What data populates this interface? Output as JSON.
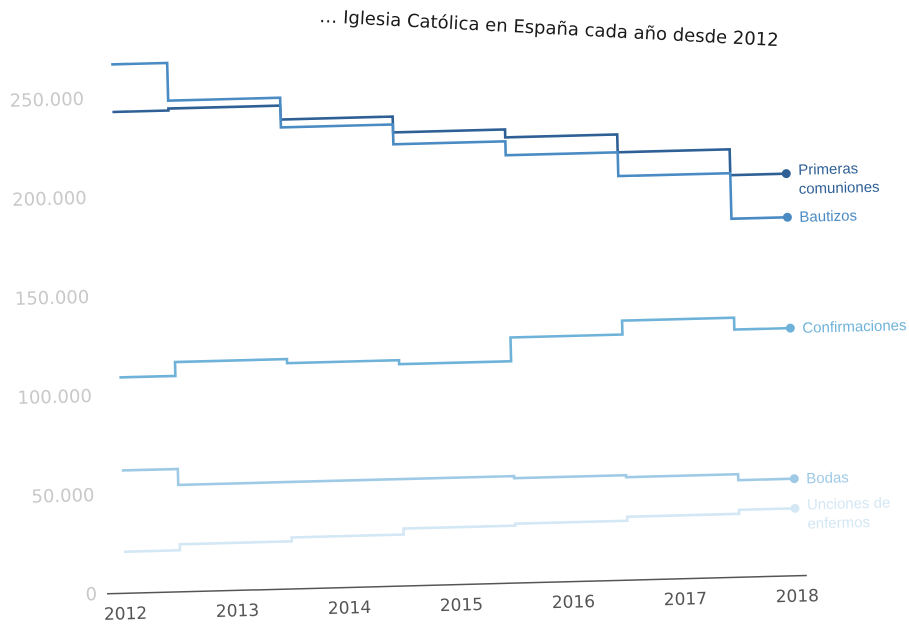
{
  "title": "… Iglesia Católica en España cada año desde 2012",
  "chart_data": {
    "type": "line",
    "title": "… Iglesia Católica en España cada año desde 2012",
    "xlabel": "",
    "ylabel": "",
    "x": [
      2012,
      2013,
      2014,
      2015,
      2016,
      2017,
      2018
    ],
    "ylim": [
      0,
      270000
    ],
    "yticks": [
      0,
      50000,
      100000,
      150000,
      200000,
      250000
    ],
    "ytick_labels": [
      "0",
      "50.000",
      "100.000",
      "150.000",
      "200.000",
      "250.000"
    ],
    "xtick_labels": [
      "2012",
      "2013",
      "2014",
      "2015",
      "2016",
      "2017",
      "2018"
    ],
    "grid": false,
    "step": true,
    "series": [
      {
        "name": "Primeras comuniones",
        "label_lines": [
          "Primeras",
          "comuniones"
        ],
        "color": "#2e5f95",
        "values": [
          243000,
          244000,
          237000,
          229000,
          225000,
          216000,
          203000
        ]
      },
      {
        "name": "Bautizos",
        "label_lines": [
          "Bautizos"
        ],
        "color": "#4a8bc4",
        "values": [
          267000,
          248000,
          233000,
          223000,
          216000,
          204000,
          181000
        ]
      },
      {
        "name": "Confirmaciones",
        "label_lines": [
          "Confirmaciones"
        ],
        "color": "#6fb2d9",
        "values": [
          109000,
          116000,
          114000,
          112000,
          124000,
          131000,
          125000
        ]
      },
      {
        "name": "Bodas",
        "label_lines": [
          "Bodas"
        ],
        "color": "#9fcae6",
        "values": [
          62000,
          54000,
          54000,
          54000,
          53000,
          52000,
          49000
        ]
      },
      {
        "name": "Unciones de enfermos",
        "label_lines": [
          "Unciones de",
          "enfermos"
        ],
        "color": "#d3e7f4",
        "values": [
          21000,
          24000,
          26000,
          29000,
          30000,
          32000,
          34000
        ]
      }
    ]
  }
}
